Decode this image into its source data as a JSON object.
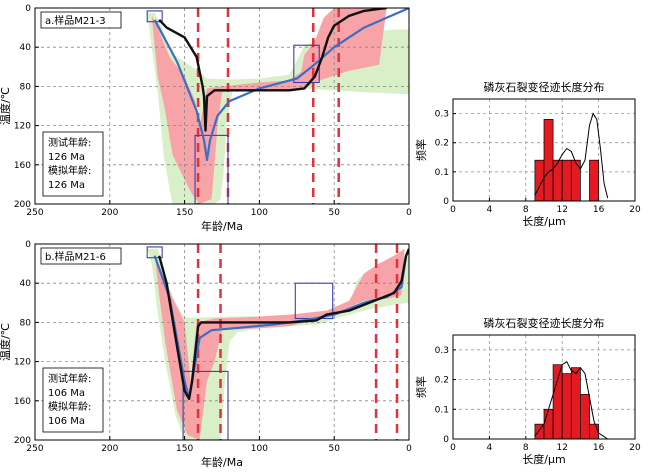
{
  "chart_data": [
    {
      "type": "line",
      "panel_label": "a.样品M21-3",
      "xlabel": "年龄/Ma",
      "ylabel": "温度/℃",
      "xlim": [
        250,
        0
      ],
      "ylim": [
        200,
        0
      ],
      "x_reversed": true,
      "y_reversed": true,
      "x_ticks": [
        250,
        200,
        150,
        100,
        50,
        0
      ],
      "y_ticks": [
        0,
        40,
        80,
        120,
        160,
        200
      ],
      "grid": true,
      "annotation": [
        "测试年龄:",
        "126 Ma",
        "模拟年龄:",
        "126 Ma"
      ],
      "acceptable_envelope": {
        "upper": [
          [
            175,
            5
          ],
          [
            170,
            5
          ],
          [
            165,
            20
          ],
          [
            160,
            45
          ],
          [
            150,
            55
          ],
          [
            145,
            60
          ],
          [
            140,
            65
          ],
          [
            135,
            72
          ],
          [
            120,
            73
          ],
          [
            100,
            72
          ],
          [
            80,
            68
          ],
          [
            72,
            45
          ],
          [
            70,
            38
          ],
          [
            62,
            34
          ],
          [
            55,
            30
          ],
          [
            45,
            26
          ],
          [
            30,
            25
          ],
          [
            10,
            22
          ],
          [
            0,
            22
          ]
        ],
        "lower": [
          [
            0,
            88
          ],
          [
            30,
            86
          ],
          [
            62,
            83
          ],
          [
            72,
            82
          ],
          [
            90,
            82
          ],
          [
            110,
            82
          ],
          [
            118,
            85
          ],
          [
            122,
            120
          ],
          [
            124,
            170
          ],
          [
            126,
            195
          ],
          [
            130,
            200
          ],
          [
            158,
            200
          ],
          [
            160,
            185
          ],
          [
            164,
            150
          ],
          [
            168,
            85
          ],
          [
            172,
            40
          ],
          [
            175,
            5
          ]
        ]
      },
      "good_envelope": {
        "upper": [
          [
            172,
            8
          ],
          [
            168,
            20
          ],
          [
            160,
            50
          ],
          [
            150,
            70
          ],
          [
            143,
            95
          ],
          [
            140,
            120
          ],
          [
            135,
            82
          ],
          [
            125,
            80
          ],
          [
            100,
            76
          ],
          [
            80,
            74
          ],
          [
            72,
            65
          ],
          [
            70,
            48
          ],
          [
            67,
            42
          ],
          [
            62,
            30
          ],
          [
            57,
            10
          ],
          [
            50,
            0
          ],
          [
            30,
            0
          ],
          [
            15,
            0
          ]
        ],
        "lower": [
          [
            15,
            0
          ],
          [
            20,
            58
          ],
          [
            40,
            64
          ],
          [
            60,
            74
          ],
          [
            70,
            82
          ],
          [
            90,
            84
          ],
          [
            110,
            84
          ],
          [
            125,
            86
          ],
          [
            128,
            120
          ],
          [
            130,
            160
          ],
          [
            132,
            195
          ],
          [
            140,
            200
          ],
          [
            145,
            190
          ],
          [
            150,
            175
          ],
          [
            158,
            150
          ],
          [
            163,
            105
          ],
          [
            168,
            70
          ],
          [
            172,
            8
          ]
        ]
      },
      "best_fit_path": [
        [
          167,
          12
        ],
        [
          162,
          20
        ],
        [
          150,
          30
        ],
        [
          142,
          50
        ],
        [
          138,
          80
        ],
        [
          137,
          90
        ],
        [
          136,
          125
        ],
        [
          135,
          90
        ],
        [
          130,
          84
        ],
        [
          125,
          84
        ],
        [
          100,
          84
        ],
        [
          80,
          84
        ],
        [
          70,
          82
        ],
        [
          63,
          70
        ],
        [
          58,
          50
        ],
        [
          54,
          30
        ],
        [
          50,
          18
        ],
        [
          40,
          8
        ],
        [
          30,
          3
        ],
        [
          15,
          0
        ]
      ],
      "weighted_mean_path": [
        [
          170,
          12
        ],
        [
          155,
          55
        ],
        [
          142,
          105
        ],
        [
          137,
          135
        ],
        [
          135,
          155
        ],
        [
          133,
          135
        ],
        [
          128,
          110
        ],
        [
          120,
          95
        ],
        [
          100,
          82
        ],
        [
          75,
          72
        ],
        [
          65,
          60
        ],
        [
          50,
          40
        ],
        [
          30,
          20
        ],
        [
          0,
          0
        ]
      ],
      "constraint_boxes": [
        [
          175,
          165,
          3,
          14
        ],
        [
          143,
          121,
          130,
          200
        ],
        [
          77,
          60,
          38,
          76
        ]
      ],
      "dashed_lines_x": [
        141,
        121,
        64,
        47
      ],
      "histogram": {
        "title": "磷灰石裂变径迹长度分布",
        "xlabel": "长度/μm",
        "ylabel": "频率",
        "xlim": [
          0,
          20
        ],
        "ylim": [
          0,
          0.35
        ],
        "x_ticks": [
          0,
          4,
          8,
          12,
          16,
          20
        ],
        "y_ticks": [
          0,
          0.1,
          0.2,
          0.3
        ],
        "bins": [
          [
            9,
            10,
            0.14
          ],
          [
            10,
            11,
            0.28
          ],
          [
            11,
            12,
            0.14
          ],
          [
            12,
            13,
            0.14
          ],
          [
            13,
            14,
            0.14
          ],
          [
            15,
            16,
            0.14
          ]
        ],
        "model_curve": [
          [
            9,
            0.02
          ],
          [
            9.5,
            0.05
          ],
          [
            10,
            0.08
          ],
          [
            10.5,
            0.1
          ],
          [
            11,
            0.11
          ],
          [
            11.5,
            0.13
          ],
          [
            12,
            0.16
          ],
          [
            12.5,
            0.18
          ],
          [
            13,
            0.17
          ],
          [
            13.5,
            0.13
          ],
          [
            14,
            0.11
          ],
          [
            14.5,
            0.14
          ],
          [
            15,
            0.26
          ],
          [
            15.4,
            0.3
          ],
          [
            15.8,
            0.28
          ],
          [
            16.2,
            0.18
          ],
          [
            16.6,
            0.06
          ],
          [
            17,
            0.01
          ]
        ]
      }
    },
    {
      "type": "line",
      "panel_label": "b.样品M21-6",
      "xlabel": "年龄/Ma",
      "ylabel": "温度/℃",
      "xlim": [
        250,
        0
      ],
      "ylim": [
        200,
        0
      ],
      "x_reversed": true,
      "y_reversed": true,
      "x_ticks": [
        250,
        200,
        150,
        100,
        50,
        0
      ],
      "y_ticks": [
        0,
        40,
        80,
        120,
        160,
        200
      ],
      "grid": true,
      "annotation": [
        "测试年龄:",
        "106 Ma",
        "模拟年龄:",
        "106 Ma"
      ],
      "acceptable_envelope": {
        "upper": [
          [
            175,
            5
          ],
          [
            168,
            5
          ],
          [
            163,
            30
          ],
          [
            158,
            55
          ],
          [
            150,
            75
          ],
          [
            140,
            75
          ],
          [
            120,
            74
          ],
          [
            100,
            74
          ],
          [
            60,
            72
          ],
          [
            40,
            64
          ],
          [
            35,
            38
          ],
          [
            30,
            30
          ],
          [
            20,
            26
          ],
          [
            10,
            20
          ],
          [
            0,
            12
          ]
        ],
        "lower": [
          [
            0,
            60
          ],
          [
            10,
            62
          ],
          [
            25,
            66
          ],
          [
            45,
            74
          ],
          [
            60,
            82
          ],
          [
            80,
            84
          ],
          [
            100,
            86
          ],
          [
            115,
            90
          ],
          [
            120,
            100
          ],
          [
            123,
            140
          ],
          [
            126,
            200
          ],
          [
            150,
            200
          ],
          [
            156,
            175
          ],
          [
            163,
            120
          ],
          [
            168,
            70
          ],
          [
            172,
            20
          ],
          [
            175,
            5
          ]
        ]
      },
      "good_envelope": {
        "upper": [
          [
            170,
            10
          ],
          [
            165,
            30
          ],
          [
            158,
            55
          ],
          [
            150,
            80
          ],
          [
            146,
            140
          ],
          [
            142,
            80
          ],
          [
            130,
            76
          ],
          [
            100,
            74
          ],
          [
            80,
            72
          ],
          [
            55,
            68
          ],
          [
            40,
            58
          ],
          [
            30,
            30
          ],
          [
            20,
            20
          ],
          [
            10,
            12
          ],
          [
            3,
            5
          ]
        ],
        "lower": [
          [
            3,
            5
          ],
          [
            5,
            52
          ],
          [
            15,
            56
          ],
          [
            30,
            58
          ],
          [
            45,
            68
          ],
          [
            60,
            76
          ],
          [
            80,
            84
          ],
          [
            100,
            86
          ],
          [
            115,
            87
          ],
          [
            125,
            88
          ],
          [
            130,
            120
          ],
          [
            135,
            140
          ],
          [
            140,
            200
          ],
          [
            148,
            195
          ],
          [
            155,
            170
          ],
          [
            163,
            100
          ],
          [
            168,
            40
          ],
          [
            170,
            10
          ]
        ]
      },
      "best_fit_path": [
        [
          167,
          12
        ],
        [
          162,
          40
        ],
        [
          155,
          105
        ],
        [
          150,
          150
        ],
        [
          147,
          158
        ],
        [
          145,
          140
        ],
        [
          141,
          84
        ],
        [
          139,
          80
        ],
        [
          120,
          80
        ],
        [
          100,
          80
        ],
        [
          80,
          80
        ],
        [
          62,
          78
        ],
        [
          55,
          72
        ],
        [
          40,
          68
        ],
        [
          20,
          56
        ],
        [
          10,
          50
        ],
        [
          5,
          38
        ],
        [
          2,
          12
        ],
        [
          0,
          5
        ]
      ],
      "weighted_mean_path": [
        [
          170,
          12
        ],
        [
          160,
          55
        ],
        [
          150,
          140
        ],
        [
          147,
          158
        ],
        [
          145,
          140
        ],
        [
          140,
          96
        ],
        [
          132,
          88
        ],
        [
          110,
          85
        ],
        [
          90,
          82
        ],
        [
          70,
          78
        ],
        [
          50,
          72
        ],
        [
          30,
          60
        ],
        [
          15,
          54
        ],
        [
          5,
          44
        ],
        [
          2,
          12
        ],
        [
          0,
          8
        ]
      ],
      "constraint_boxes": [
        [
          175,
          165,
          3,
          14
        ],
        [
          151,
          121,
          130,
          200
        ],
        [
          76,
          51,
          40,
          76
        ]
      ],
      "dashed_lines_x": [
        141,
        126,
        22,
        8
      ],
      "histogram": {
        "title": "磷灰石裂变径迹长度分布",
        "xlabel": "长度/μm",
        "ylabel": "频率",
        "xlim": [
          0,
          20
        ],
        "ylim": [
          0,
          0.35
        ],
        "x_ticks": [
          0,
          4,
          8,
          12,
          16,
          20
        ],
        "y_ticks": [
          0,
          0.1,
          0.2,
          0.3
        ],
        "bins": [
          [
            9,
            10,
            0.05
          ],
          [
            10,
            11,
            0.1
          ],
          [
            11,
            12,
            0.25
          ],
          [
            12,
            13,
            0.22
          ],
          [
            13,
            14,
            0.24
          ],
          [
            14,
            15,
            0.15
          ],
          [
            15,
            16,
            0.05
          ]
        ],
        "model_curve": [
          [
            9,
            0.01
          ],
          [
            10,
            0.05
          ],
          [
            11,
            0.15
          ],
          [
            12,
            0.25
          ],
          [
            12.5,
            0.26
          ],
          [
            13,
            0.23
          ],
          [
            13.5,
            0.22
          ],
          [
            14,
            0.24
          ],
          [
            14.5,
            0.22
          ],
          [
            15,
            0.14
          ],
          [
            15.5,
            0.06
          ],
          [
            16,
            0.02
          ],
          [
            17,
            0.0
          ]
        ]
      }
    }
  ],
  "colors": {
    "acceptable_fill": "#d8efc8",
    "good_fill": "#f7a3a8",
    "best_fit_line": "#111111",
    "mean_line": "#3a6fc4",
    "constraint_box": "#3b3fb0",
    "dashed_line": "#e0323c",
    "bar_fill": "#e21b23"
  }
}
